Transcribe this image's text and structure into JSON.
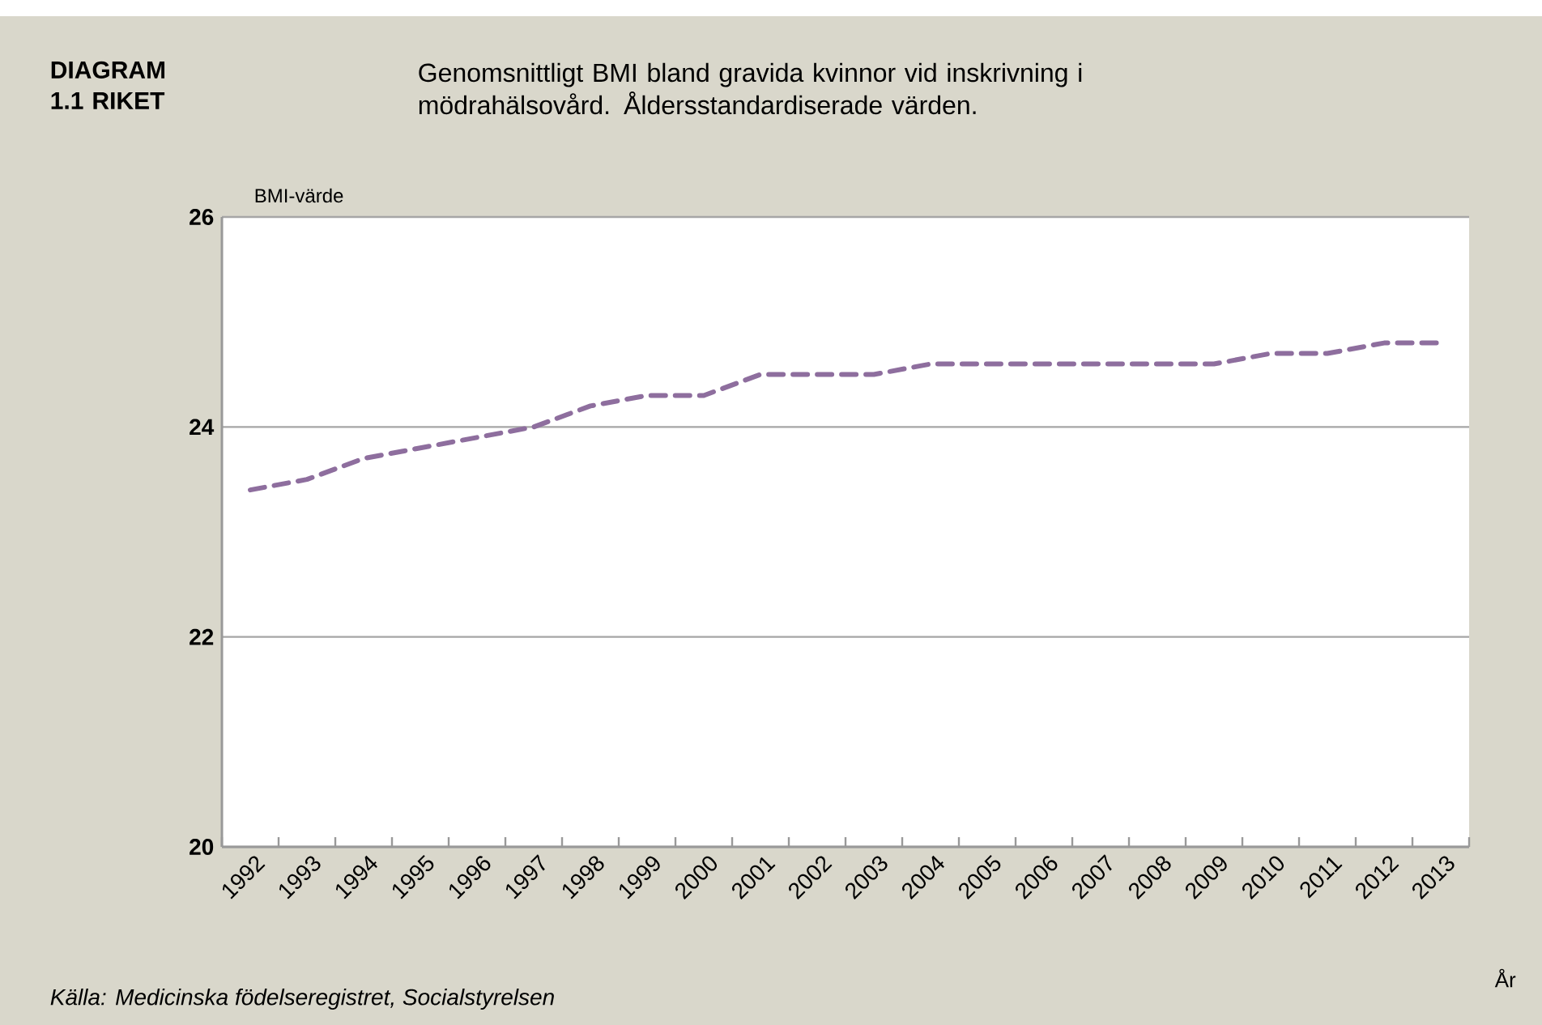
{
  "chart_data": {
    "type": "line",
    "title": "DIAGRAM 1.1 RIKET",
    "subtitle": "Genomsnittligt BMI bland gravida kvinnor vid inskrivning i mödrahälsovård. Åldersstandardiserade värden.",
    "ylabel": "BMI-värde",
    "xlabel": "År",
    "annotations": [
      "Källa: Medicinska födelseregistret, Socialstyrelsen"
    ],
    "categories": [
      "1992",
      "1993",
      "1994",
      "1995",
      "1996",
      "1997",
      "1998",
      "1999",
      "2000",
      "2001",
      "2002",
      "2003",
      "2004",
      "2005",
      "2006",
      "2007",
      "2008",
      "2009",
      "2010",
      "2011",
      "2012",
      "2013"
    ],
    "series": [
      {
        "color": "#8e6e9e",
        "values": [
          23.4,
          23.5,
          23.7,
          23.8,
          23.9,
          24.0,
          24.2,
          24.3,
          24.3,
          24.5,
          24.5,
          24.5,
          24.6,
          24.6,
          24.6,
          24.6,
          24.6,
          24.6,
          24.7,
          24.7,
          24.8,
          24.8
        ]
      }
    ],
    "line_style": "dashed",
    "marker": "none",
    "ylim": [
      20,
      26
    ],
    "yticks": [
      20,
      22,
      24,
      26
    ],
    "grid": "y"
  }
}
